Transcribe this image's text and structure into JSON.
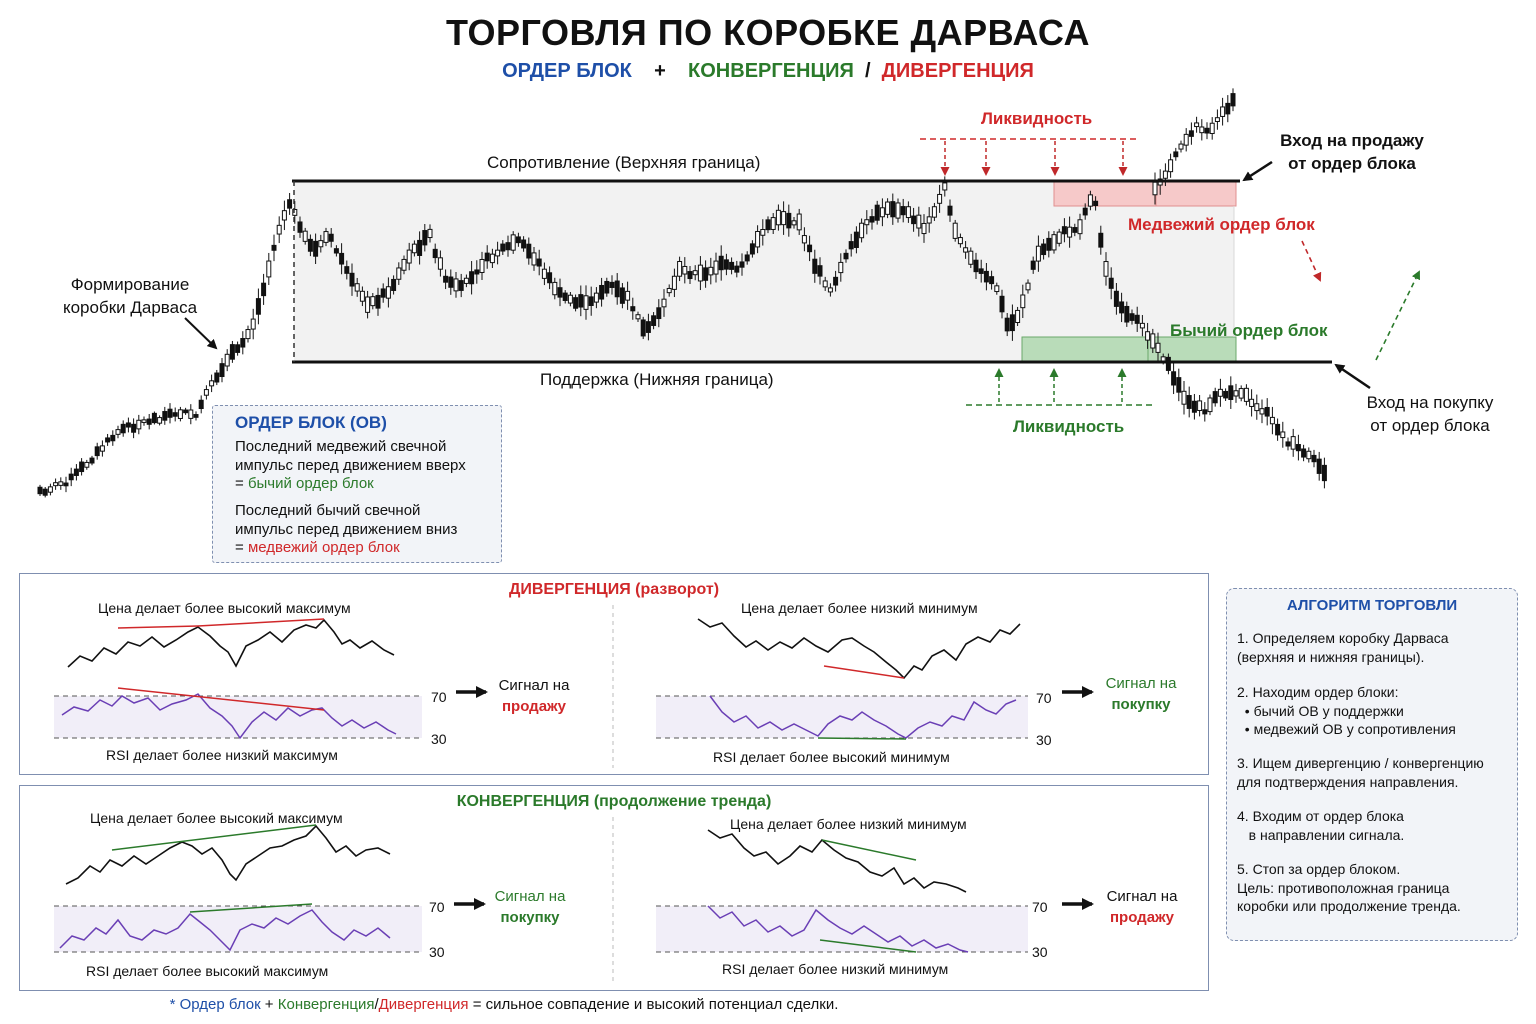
{
  "header": {
    "title": "ТОРГОВЛЯ ПО КОРОБКЕ ДАРВАСА",
    "sub_orderblock": "ОРДЕР БЛОК",
    "sub_plus": "+",
    "sub_convergence": "КОНВЕРГЕНЦИЯ",
    "sub_slash": "/",
    "sub_divergence": "ДИВЕРГЕНЦИЯ"
  },
  "main_chart": {
    "resistance_label": "Сопротивление (Верхняя граница)",
    "support_label": "Поддержка (Нижняя граница)",
    "formation_label_1": "Формирование",
    "formation_label_2": "коробки Дарваса",
    "liquidity_top": "Ликвидность",
    "liquidity_bottom": "Ликвидность",
    "bearish_ob": "Медвежий ордер блок",
    "bullish_ob": "Бычий ордер блок",
    "sell_entry_1": "Вход на продажу",
    "sell_entry_2": "от ордер блока",
    "buy_entry_1": "Вход на покупку",
    "buy_entry_2": "от ордер блока"
  },
  "ob_box": {
    "title": "ОРДЕР БЛОК (OB)",
    "line1": "Последний медвежий свечной",
    "line2": "импульс перед движением вверх",
    "line3_prefix": "= ",
    "line3_value": "бычий ордер блок",
    "line4": "Последний бычий свечной",
    "line5": "импульс перед движением вниз",
    "line6_prefix": "= ",
    "line6_value": "медвежий ордер блок"
  },
  "divergence_panel": {
    "title": "ДИВЕРГЕНЦИЯ (разворот)",
    "left_price": "Цена делает более высокий максимум",
    "left_rsi": "RSI делает более низкий максимум",
    "left_signal_1": "Сигнал на",
    "left_signal_2": "продажу",
    "right_price": "Цена делает более низкий минимум",
    "right_rsi": "RSI делает более высокий минимум",
    "right_signal_1": "Сигнал на",
    "right_signal_2": "покупку",
    "level_high": "70",
    "level_low": "30"
  },
  "convergence_panel": {
    "title": "КОНВЕРГЕНЦИЯ (продолжение тренда)",
    "left_price": "Цена делает более высокий максимум",
    "left_rsi": "RSI делает более высокий максимум",
    "left_signal_1": "Сигнал на",
    "left_signal_2": "покупку",
    "right_price": "Цена делает более низкий минимум",
    "right_rsi": "RSI делает более низкий минимум",
    "right_signal_1": "Сигнал на",
    "right_signal_2": "продажу",
    "level_high": "70",
    "level_low": "30"
  },
  "algorithm": {
    "title": "АЛГОРИТМ ТОРГОВЛИ",
    "s1a": "1. Определяем коробку Дарваса",
    "s1b": "(верхняя и нижняя границы).",
    "s2a": "2. Находим ордер блоки:",
    "s2b": "• бычий OB у поддержки",
    "s2c": "• медвежий OB у сопротивления",
    "s3a": "3. Ищем дивергенцию / конвергенцию",
    "s3b": "для подтверждения направления.",
    "s4a": "4. Входим от ордер блока",
    "s4b": "в направлении сигнала.",
    "s5a": "5. Стоп за ордер блоком.",
    "s5b": "Цель: противоположная граница",
    "s5c": "коробки или продолжение тренда."
  },
  "footer": {
    "star": "* ",
    "orderblock": "Ордер блок",
    "plus": " + ",
    "convergence": "Конвергенция",
    "slash": "/",
    "divergence": "Дивергенция",
    "rest": " = сильное совпадение и высокий потенциал сделки."
  },
  "colors": {
    "blue": "#1e4fa8",
    "green": "#2b7a2b",
    "red": "#d0282a",
    "rsi": "#6a3fb5",
    "box_fill": "#f2f2f2",
    "bear_zone": "#f6c9c9",
    "bull_zone": "#b9dcb9"
  }
}
